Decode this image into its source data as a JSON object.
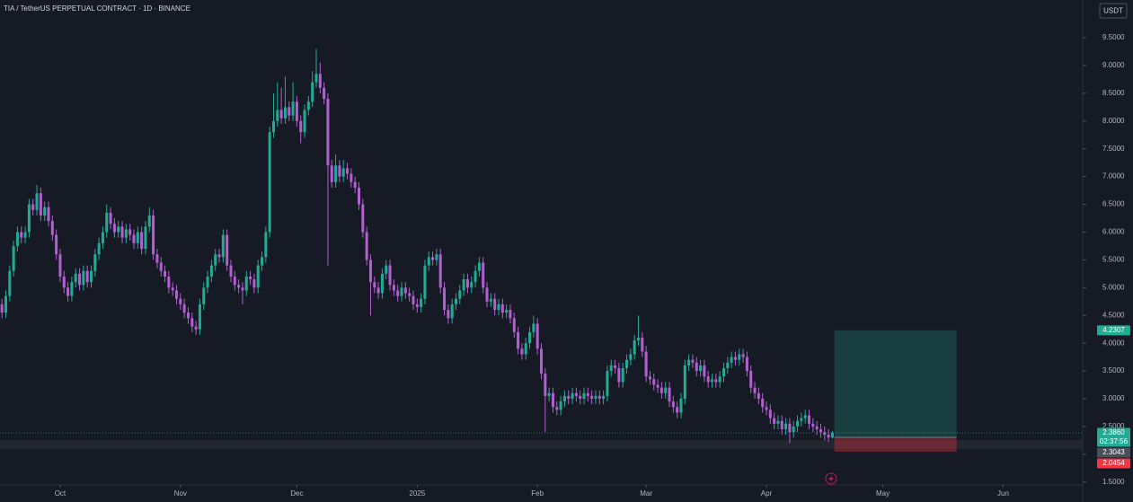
{
  "chart_data": {
    "type": "candlestick",
    "title": "TIA / TetherUS PERPETUAL CONTRACT · 1D · BINANCE",
    "currency": "USDT",
    "up_color": "#22ab94",
    "down_color": "#b35fd1",
    "candles": [
      [
        4.7,
        4.8,
        4.45,
        4.55
      ],
      [
        4.55,
        4.95,
        4.45,
        4.85
      ],
      [
        4.85,
        5.4,
        4.75,
        5.3
      ],
      [
        5.3,
        5.85,
        5.2,
        5.75
      ],
      [
        5.75,
        6.1,
        5.65,
        6.0
      ],
      [
        6.0,
        6.1,
        5.8,
        5.9
      ],
      [
        5.9,
        6.1,
        5.8,
        6.0
      ],
      [
        6.0,
        6.6,
        5.9,
        6.5
      ],
      [
        6.5,
        6.6,
        6.3,
        6.4
      ],
      [
        6.4,
        6.85,
        6.3,
        6.7
      ],
      [
        6.7,
        6.8,
        6.2,
        6.3
      ],
      [
        6.3,
        6.55,
        6.2,
        6.45
      ],
      [
        6.45,
        6.55,
        6.1,
        6.2
      ],
      [
        6.2,
        6.3,
        5.85,
        5.95
      ],
      [
        5.95,
        6.05,
        5.5,
        5.6
      ],
      [
        5.6,
        5.7,
        5.1,
        5.2
      ],
      [
        5.2,
        5.3,
        4.9,
        5.0
      ],
      [
        5.0,
        5.1,
        4.75,
        4.85
      ],
      [
        4.85,
        5.2,
        4.75,
        5.1
      ],
      [
        5.1,
        5.35,
        5.0,
        5.25
      ],
      [
        5.25,
        5.35,
        4.95,
        5.05
      ],
      [
        5.05,
        5.4,
        4.95,
        5.3
      ],
      [
        5.3,
        5.4,
        5.0,
        5.1
      ],
      [
        5.1,
        5.4,
        5.0,
        5.3
      ],
      [
        5.3,
        5.7,
        5.2,
        5.6
      ],
      [
        5.6,
        5.9,
        5.5,
        5.8
      ],
      [
        5.8,
        6.1,
        5.7,
        6.0
      ],
      [
        6.0,
        6.5,
        5.9,
        6.35
      ],
      [
        6.35,
        6.45,
        6.05,
        6.15
      ],
      [
        6.15,
        6.25,
        5.9,
        6.0
      ],
      [
        6.0,
        6.2,
        5.9,
        6.1
      ],
      [
        6.1,
        6.2,
        5.8,
        5.9
      ],
      [
        5.9,
        6.15,
        5.8,
        6.05
      ],
      [
        6.05,
        6.15,
        5.85,
        5.95
      ],
      [
        5.95,
        6.05,
        5.7,
        5.8
      ],
      [
        5.8,
        6.1,
        5.7,
        6.0
      ],
      [
        6.0,
        6.1,
        5.6,
        5.7
      ],
      [
        5.7,
        6.2,
        5.6,
        6.1
      ],
      [
        6.1,
        6.45,
        6.0,
        6.3
      ],
      [
        6.3,
        6.4,
        5.5,
        5.6
      ],
      [
        5.6,
        5.7,
        5.35,
        5.45
      ],
      [
        5.45,
        5.55,
        5.2,
        5.3
      ],
      [
        5.3,
        5.4,
        5.1,
        5.2
      ],
      [
        5.2,
        5.3,
        4.9,
        5.0
      ],
      [
        5.0,
        5.1,
        4.85,
        4.95
      ],
      [
        4.95,
        5.05,
        4.7,
        4.8
      ],
      [
        4.8,
        4.9,
        4.6,
        4.7
      ],
      [
        4.7,
        4.8,
        4.45,
        4.55
      ],
      [
        4.55,
        4.65,
        4.35,
        4.45
      ],
      [
        4.45,
        4.55,
        4.2,
        4.3
      ],
      [
        4.3,
        4.4,
        4.15,
        4.25
      ],
      [
        4.25,
        4.8,
        4.15,
        4.7
      ],
      [
        4.7,
        5.1,
        4.6,
        5.0
      ],
      [
        5.0,
        5.3,
        4.9,
        5.2
      ],
      [
        5.2,
        5.5,
        5.1,
        5.4
      ],
      [
        5.4,
        5.7,
        5.3,
        5.6
      ],
      [
        5.6,
        5.7,
        5.45,
        5.55
      ],
      [
        5.55,
        6.05,
        5.45,
        5.95
      ],
      [
        5.95,
        6.05,
        5.3,
        5.4
      ],
      [
        5.4,
        5.5,
        5.1,
        5.2
      ],
      [
        5.2,
        5.3,
        4.95,
        5.05
      ],
      [
        5.05,
        5.15,
        4.9,
        5.0
      ],
      [
        5.0,
        5.1,
        4.7,
        4.95
      ],
      [
        4.95,
        5.3,
        4.85,
        5.2
      ],
      [
        5.2,
        5.3,
        5.05,
        5.15
      ],
      [
        5.15,
        5.25,
        4.9,
        5.0
      ],
      [
        5.0,
        5.5,
        4.9,
        5.4
      ],
      [
        5.4,
        5.65,
        5.3,
        5.55
      ],
      [
        5.55,
        6.1,
        5.45,
        6.0
      ],
      [
        6.0,
        7.9,
        5.9,
        7.8
      ],
      [
        7.8,
        8.5,
        7.7,
        8.0
      ],
      [
        8.0,
        8.7,
        7.9,
        8.2
      ],
      [
        8.2,
        8.6,
        7.95,
        8.05
      ],
      [
        8.05,
        8.8,
        7.95,
        8.25
      ],
      [
        8.25,
        8.35,
        8.0,
        8.1
      ],
      [
        8.1,
        8.7,
        8.0,
        8.35
      ],
      [
        8.35,
        8.45,
        7.9,
        8.0
      ],
      [
        8.0,
        8.1,
        7.6,
        7.8
      ],
      [
        7.8,
        8.3,
        7.7,
        8.2
      ],
      [
        8.2,
        8.45,
        8.1,
        8.35
      ],
      [
        8.35,
        8.9,
        8.25,
        8.7
      ],
      [
        8.7,
        9.3,
        8.6,
        8.85
      ],
      [
        8.85,
        9.05,
        8.5,
        8.6
      ],
      [
        8.6,
        8.7,
        8.3,
        8.4
      ],
      [
        8.4,
        8.5,
        5.4,
        7.2
      ],
      [
        7.2,
        7.3,
        6.8,
        6.9
      ],
      [
        6.9,
        7.4,
        6.8,
        7.2
      ],
      [
        7.2,
        7.3,
        6.9,
        7.0
      ],
      [
        7.0,
        7.3,
        6.9,
        7.15
      ],
      [
        7.15,
        7.25,
        6.95,
        7.05
      ],
      [
        7.05,
        7.15,
        6.8,
        6.9
      ],
      [
        6.9,
        7.0,
        6.7,
        6.8
      ],
      [
        6.8,
        6.9,
        6.4,
        6.5
      ],
      [
        6.5,
        6.6,
        5.9,
        6.0
      ],
      [
        6.0,
        6.1,
        5.4,
        5.5
      ],
      [
        5.5,
        5.6,
        4.5,
        5.1
      ],
      [
        5.1,
        5.2,
        4.9,
        5.0
      ],
      [
        5.0,
        5.1,
        4.8,
        4.9
      ],
      [
        4.9,
        5.35,
        4.8,
        5.25
      ],
      [
        5.25,
        5.5,
        5.15,
        5.4
      ],
      [
        5.4,
        5.5,
        4.95,
        5.05
      ],
      [
        5.05,
        5.15,
        4.85,
        4.95
      ],
      [
        4.95,
        5.05,
        4.75,
        4.85
      ],
      [
        4.85,
        5.1,
        4.75,
        5.0
      ],
      [
        5.0,
        5.1,
        4.8,
        4.9
      ],
      [
        4.9,
        5.0,
        4.75,
        4.85
      ],
      [
        4.85,
        4.95,
        4.6,
        4.7
      ],
      [
        4.7,
        4.8,
        4.55,
        4.65
      ],
      [
        4.65,
        4.9,
        4.55,
        4.8
      ],
      [
        4.8,
        5.5,
        4.7,
        5.4
      ],
      [
        5.4,
        5.65,
        5.3,
        5.55
      ],
      [
        5.55,
        5.65,
        5.4,
        5.5
      ],
      [
        5.5,
        5.7,
        5.4,
        5.6
      ],
      [
        5.6,
        5.7,
        4.9,
        5.0
      ],
      [
        5.0,
        5.1,
        4.5,
        4.6
      ],
      [
        4.6,
        4.7,
        4.35,
        4.45
      ],
      [
        4.45,
        4.8,
        4.35,
        4.7
      ],
      [
        4.7,
        4.9,
        4.6,
        4.8
      ],
      [
        4.8,
        5.05,
        4.7,
        4.95
      ],
      [
        4.95,
        5.25,
        4.85,
        5.15
      ],
      [
        5.15,
        5.25,
        4.9,
        5.0
      ],
      [
        5.0,
        5.2,
        4.9,
        5.1
      ],
      [
        5.1,
        5.4,
        5.0,
        5.3
      ],
      [
        5.3,
        5.55,
        5.2,
        5.45
      ],
      [
        5.45,
        5.55,
        4.9,
        5.0
      ],
      [
        5.0,
        5.1,
        4.65,
        4.75
      ],
      [
        4.75,
        4.9,
        4.65,
        4.8
      ],
      [
        4.8,
        4.9,
        4.5,
        4.6
      ],
      [
        4.6,
        4.8,
        4.5,
        4.7
      ],
      [
        4.7,
        4.8,
        4.45,
        4.55
      ],
      [
        4.55,
        4.7,
        4.45,
        4.6
      ],
      [
        4.6,
        4.7,
        4.35,
        4.45
      ],
      [
        4.45,
        4.55,
        4.1,
        4.2
      ],
      [
        4.2,
        4.3,
        3.8,
        3.9
      ],
      [
        3.9,
        4.0,
        3.7,
        3.8
      ],
      [
        3.8,
        4.1,
        3.7,
        4.0
      ],
      [
        4.0,
        4.3,
        3.9,
        4.2
      ],
      [
        4.2,
        4.5,
        4.1,
        4.35
      ],
      [
        4.35,
        4.45,
        3.8,
        3.9
      ],
      [
        3.9,
        4.0,
        3.35,
        3.45
      ],
      [
        3.45,
        3.55,
        2.4,
        3.05
      ],
      [
        3.05,
        3.2,
        2.95,
        3.1
      ],
      [
        3.1,
        3.2,
        2.75,
        2.85
      ],
      [
        2.85,
        2.95,
        2.7,
        2.8
      ],
      [
        2.8,
        3.05,
        2.7,
        2.95
      ],
      [
        2.95,
        3.15,
        2.85,
        3.05
      ],
      [
        3.05,
        3.15,
        2.9,
        3.0
      ],
      [
        3.0,
        3.2,
        2.9,
        3.1
      ],
      [
        3.1,
        3.2,
        2.95,
        3.05
      ],
      [
        3.05,
        3.15,
        2.9,
        3.0
      ],
      [
        3.0,
        3.2,
        2.9,
        3.1
      ],
      [
        3.1,
        3.2,
        2.95,
        3.05
      ],
      [
        3.05,
        3.15,
        2.9,
        3.0
      ],
      [
        3.0,
        3.15,
        2.9,
        3.05
      ],
      [
        3.05,
        3.15,
        2.9,
        3.0
      ],
      [
        3.0,
        3.15,
        2.9,
        3.05
      ],
      [
        3.05,
        3.6,
        2.95,
        3.5
      ],
      [
        3.5,
        3.7,
        3.4,
        3.6
      ],
      [
        3.6,
        3.7,
        3.45,
        3.55
      ],
      [
        3.55,
        3.65,
        3.2,
        3.3
      ],
      [
        3.3,
        3.65,
        3.2,
        3.55
      ],
      [
        3.55,
        3.8,
        3.45,
        3.7
      ],
      [
        3.7,
        3.9,
        3.6,
        3.8
      ],
      [
        3.8,
        4.15,
        3.7,
        4.05
      ],
      [
        4.05,
        4.5,
        3.95,
        4.1
      ],
      [
        4.1,
        4.2,
        3.75,
        3.85
      ],
      [
        3.85,
        3.95,
        3.3,
        3.4
      ],
      [
        3.4,
        3.5,
        3.25,
        3.35
      ],
      [
        3.35,
        3.45,
        3.15,
        3.25
      ],
      [
        3.25,
        3.35,
        3.1,
        3.2
      ],
      [
        3.2,
        3.3,
        3.0,
        3.1
      ],
      [
        3.1,
        3.3,
        3.0,
        3.2
      ],
      [
        3.2,
        3.3,
        2.85,
        2.95
      ],
      [
        2.95,
        3.05,
        2.75,
        2.85
      ],
      [
        2.85,
        2.95,
        2.65,
        2.75
      ],
      [
        2.75,
        3.1,
        2.65,
        3.0
      ],
      [
        3.0,
        3.7,
        2.9,
        3.6
      ],
      [
        3.6,
        3.8,
        3.5,
        3.7
      ],
      [
        3.7,
        3.8,
        3.55,
        3.65
      ],
      [
        3.65,
        3.75,
        3.4,
        3.5
      ],
      [
        3.5,
        3.7,
        3.4,
        3.6
      ],
      [
        3.6,
        3.7,
        3.3,
        3.4
      ],
      [
        3.4,
        3.5,
        3.2,
        3.3
      ],
      [
        3.3,
        3.45,
        3.2,
        3.35
      ],
      [
        3.35,
        3.45,
        3.2,
        3.3
      ],
      [
        3.3,
        3.5,
        3.2,
        3.4
      ],
      [
        3.4,
        3.65,
        3.3,
        3.55
      ],
      [
        3.55,
        3.75,
        3.45,
        3.65
      ],
      [
        3.65,
        3.85,
        3.55,
        3.75
      ],
      [
        3.75,
        3.85,
        3.6,
        3.7
      ],
      [
        3.7,
        3.9,
        3.6,
        3.8
      ],
      [
        3.8,
        3.9,
        3.65,
        3.75
      ],
      [
        3.75,
        3.85,
        3.4,
        3.5
      ],
      [
        3.5,
        3.6,
        3.1,
        3.2
      ],
      [
        3.2,
        3.3,
        3.0,
        3.1
      ],
      [
        3.1,
        3.2,
        2.9,
        3.0
      ],
      [
        3.0,
        3.1,
        2.75,
        2.85
      ],
      [
        2.85,
        2.95,
        2.7,
        2.8
      ],
      [
        2.8,
        2.9,
        2.55,
        2.65
      ],
      [
        2.65,
        2.75,
        2.45,
        2.55
      ],
      [
        2.55,
        2.7,
        2.45,
        2.6
      ],
      [
        2.6,
        2.7,
        2.35,
        2.45
      ],
      [
        2.45,
        2.65,
        2.35,
        2.55
      ],
      [
        2.55,
        2.65,
        2.2,
        2.4
      ],
      [
        2.4,
        2.6,
        2.3,
        2.5
      ],
      [
        2.5,
        2.7,
        2.4,
        2.6
      ],
      [
        2.6,
        2.75,
        2.5,
        2.65
      ],
      [
        2.65,
        2.8,
        2.55,
        2.7
      ],
      [
        2.7,
        2.8,
        2.45,
        2.55
      ],
      [
        2.55,
        2.65,
        2.4,
        2.5
      ],
      [
        2.5,
        2.6,
        2.35,
        2.45
      ],
      [
        2.45,
        2.55,
        2.3,
        2.4
      ],
      [
        2.4,
        2.5,
        2.25,
        2.35
      ],
      [
        2.35,
        2.45,
        2.22,
        2.3
      ],
      [
        2.3,
        2.42,
        2.28,
        2.386
      ]
    ],
    "xlim": [
      -0.5,
      278.5
    ],
    "xticks": [
      {
        "value": 15,
        "label": "Oct"
      },
      {
        "value": 46,
        "label": "Nov"
      },
      {
        "value": 76,
        "label": "Dec"
      },
      {
        "value": 107,
        "label": "2025"
      },
      {
        "value": 138,
        "label": "Feb"
      },
      {
        "value": 166,
        "label": "Mar"
      },
      {
        "value": 197,
        "label": "Apr"
      },
      {
        "value": 227,
        "label": "May"
      },
      {
        "value": 258,
        "label": "Jun"
      }
    ],
    "ylim": [
      1.14,
      10.18
    ],
    "yticks": [
      {
        "value": 1.5,
        "label": "1.5000"
      },
      {
        "value": 2,
        "label": "2.0000"
      },
      {
        "value": 2.5,
        "label": "2.5000"
      },
      {
        "value": 3,
        "label": "3.0000"
      },
      {
        "value": 3.5,
        "label": "3.5000"
      },
      {
        "value": 4,
        "label": "4.0000"
      },
      {
        "value": 4.5,
        "label": "4.5000"
      },
      {
        "value": 5,
        "label": "5.0000"
      },
      {
        "value": 5.5,
        "label": "5.5000"
      },
      {
        "value": 6,
        "label": "6.0000"
      },
      {
        "value": 6.5,
        "label": "6.5000"
      },
      {
        "value": 7,
        "label": "7.0000"
      },
      {
        "value": 7.5,
        "label": "7.5000"
      },
      {
        "value": 8,
        "label": "8.0000"
      },
      {
        "value": 8.5,
        "label": "8.5000"
      },
      {
        "value": 9,
        "label": "9.0000"
      },
      {
        "value": 9.5,
        "label": "9.5000"
      }
    ],
    "last_price": {
      "value": 2.386,
      "label": "2.3860",
      "countdown": "02:37:56",
      "color": "#22ab94"
    },
    "position": {
      "x_range": [
        214.5,
        246
      ],
      "target": {
        "value": 4.2307,
        "label": "4.2307",
        "color": "#22ab94"
      },
      "entry": {
        "value": 2.3043,
        "label": "2.3043",
        "color": "#4a4e59"
      },
      "stop": {
        "value": 2.0454,
        "label": "2.0454",
        "color": "#f23645"
      }
    }
  }
}
